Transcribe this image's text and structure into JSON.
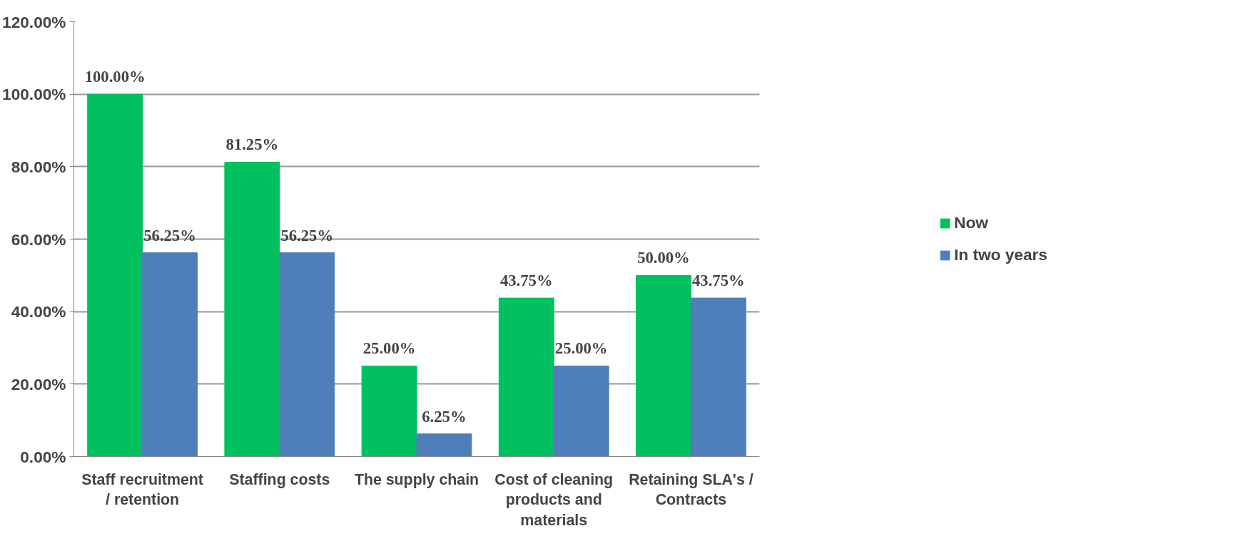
{
  "chart_data": {
    "type": "bar",
    "categories": [
      "Staff recruitment / retention",
      "Staffing costs",
      "The supply chain",
      "Cost of cleaning products and materials",
      "Retaining SLA's / Contracts"
    ],
    "series": [
      {
        "name": "Now",
        "color": "#00c060",
        "values": [
          100,
          81.25,
          25,
          43.75,
          50
        ],
        "value_labels": [
          "100.00%",
          "81.25%",
          "25.00%",
          "43.75%",
          "50.00%"
        ]
      },
      {
        "name": "In two years",
        "color": "#4f7fba",
        "values": [
          56.25,
          56.25,
          6.25,
          25,
          43.75
        ],
        "value_labels": [
          "56.25%",
          "56.25%",
          "6.25%",
          "25.00%",
          "43.75%"
        ]
      }
    ],
    "ylim": [
      0,
      120
    ],
    "yticks": [
      {
        "value": 0,
        "label": "0.00%"
      },
      {
        "value": 20,
        "label": "20.00%"
      },
      {
        "value": 40,
        "label": "40.00%"
      },
      {
        "value": 60,
        "label": "60.00%"
      },
      {
        "value": 80,
        "label": "80.00%"
      },
      {
        "value": 100,
        "label": "100.00%"
      },
      {
        "value": 120,
        "label": "120.00%"
      }
    ],
    "grid": "y",
    "legend": "right"
  }
}
